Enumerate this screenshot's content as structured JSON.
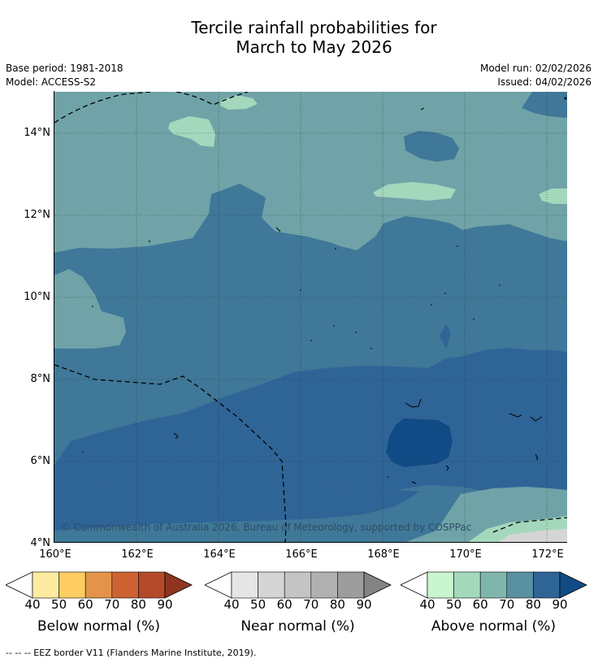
{
  "title": {
    "line1": "Tercile rainfall probabilities for",
    "line2": "March to May 2026"
  },
  "meta": {
    "base_period": "Base period: 1981-2018",
    "model": "Model: ACCESS-S2",
    "model_run": "Model run: 02/02/2026",
    "issued": "Issued: 04/02/2026"
  },
  "axes": {
    "latitudes": [
      "14°N",
      "12°N",
      "10°N",
      "8°N",
      "6°N",
      "4°N"
    ],
    "longitudes": [
      "160°E",
      "162°E",
      "164°E",
      "166°E",
      "168°E",
      "170°E",
      "172°E"
    ]
  },
  "map": {
    "copyright": "© Commonwealth of Australia 2026, Bureau of Meteorology, supported by COSPPac"
  },
  "colorbars": [
    {
      "title": "Below normal (%)",
      "ticks": [
        "40",
        "50",
        "60",
        "70",
        "80",
        "90"
      ],
      "colors": [
        "#ffffff",
        "#feeba1",
        "#fdcc63",
        "#e3944a",
        "#cf6233",
        "#b44a2a",
        "#8f3520"
      ]
    },
    {
      "title": "Near normal (%)",
      "ticks": [
        "40",
        "50",
        "60",
        "70",
        "80",
        "90"
      ],
      "colors": [
        "#ffffff",
        "#e6e6e6",
        "#d5d5d5",
        "#c4c4c4",
        "#b1b1b1",
        "#9d9d9d",
        "#838383"
      ]
    },
    {
      "title": "Above normal (%)",
      "ticks": [
        "40",
        "50",
        "60",
        "70",
        "80",
        "90"
      ],
      "colors": [
        "#ffffff",
        "#c9f5cf",
        "#a4d8bc",
        "#7fb6ac",
        "#5990a0",
        "#2f6497",
        "#114b85"
      ]
    }
  ],
  "footnote": "--  --  -- EEZ border V11 (Flanders Marine Institute, 2019)."
}
